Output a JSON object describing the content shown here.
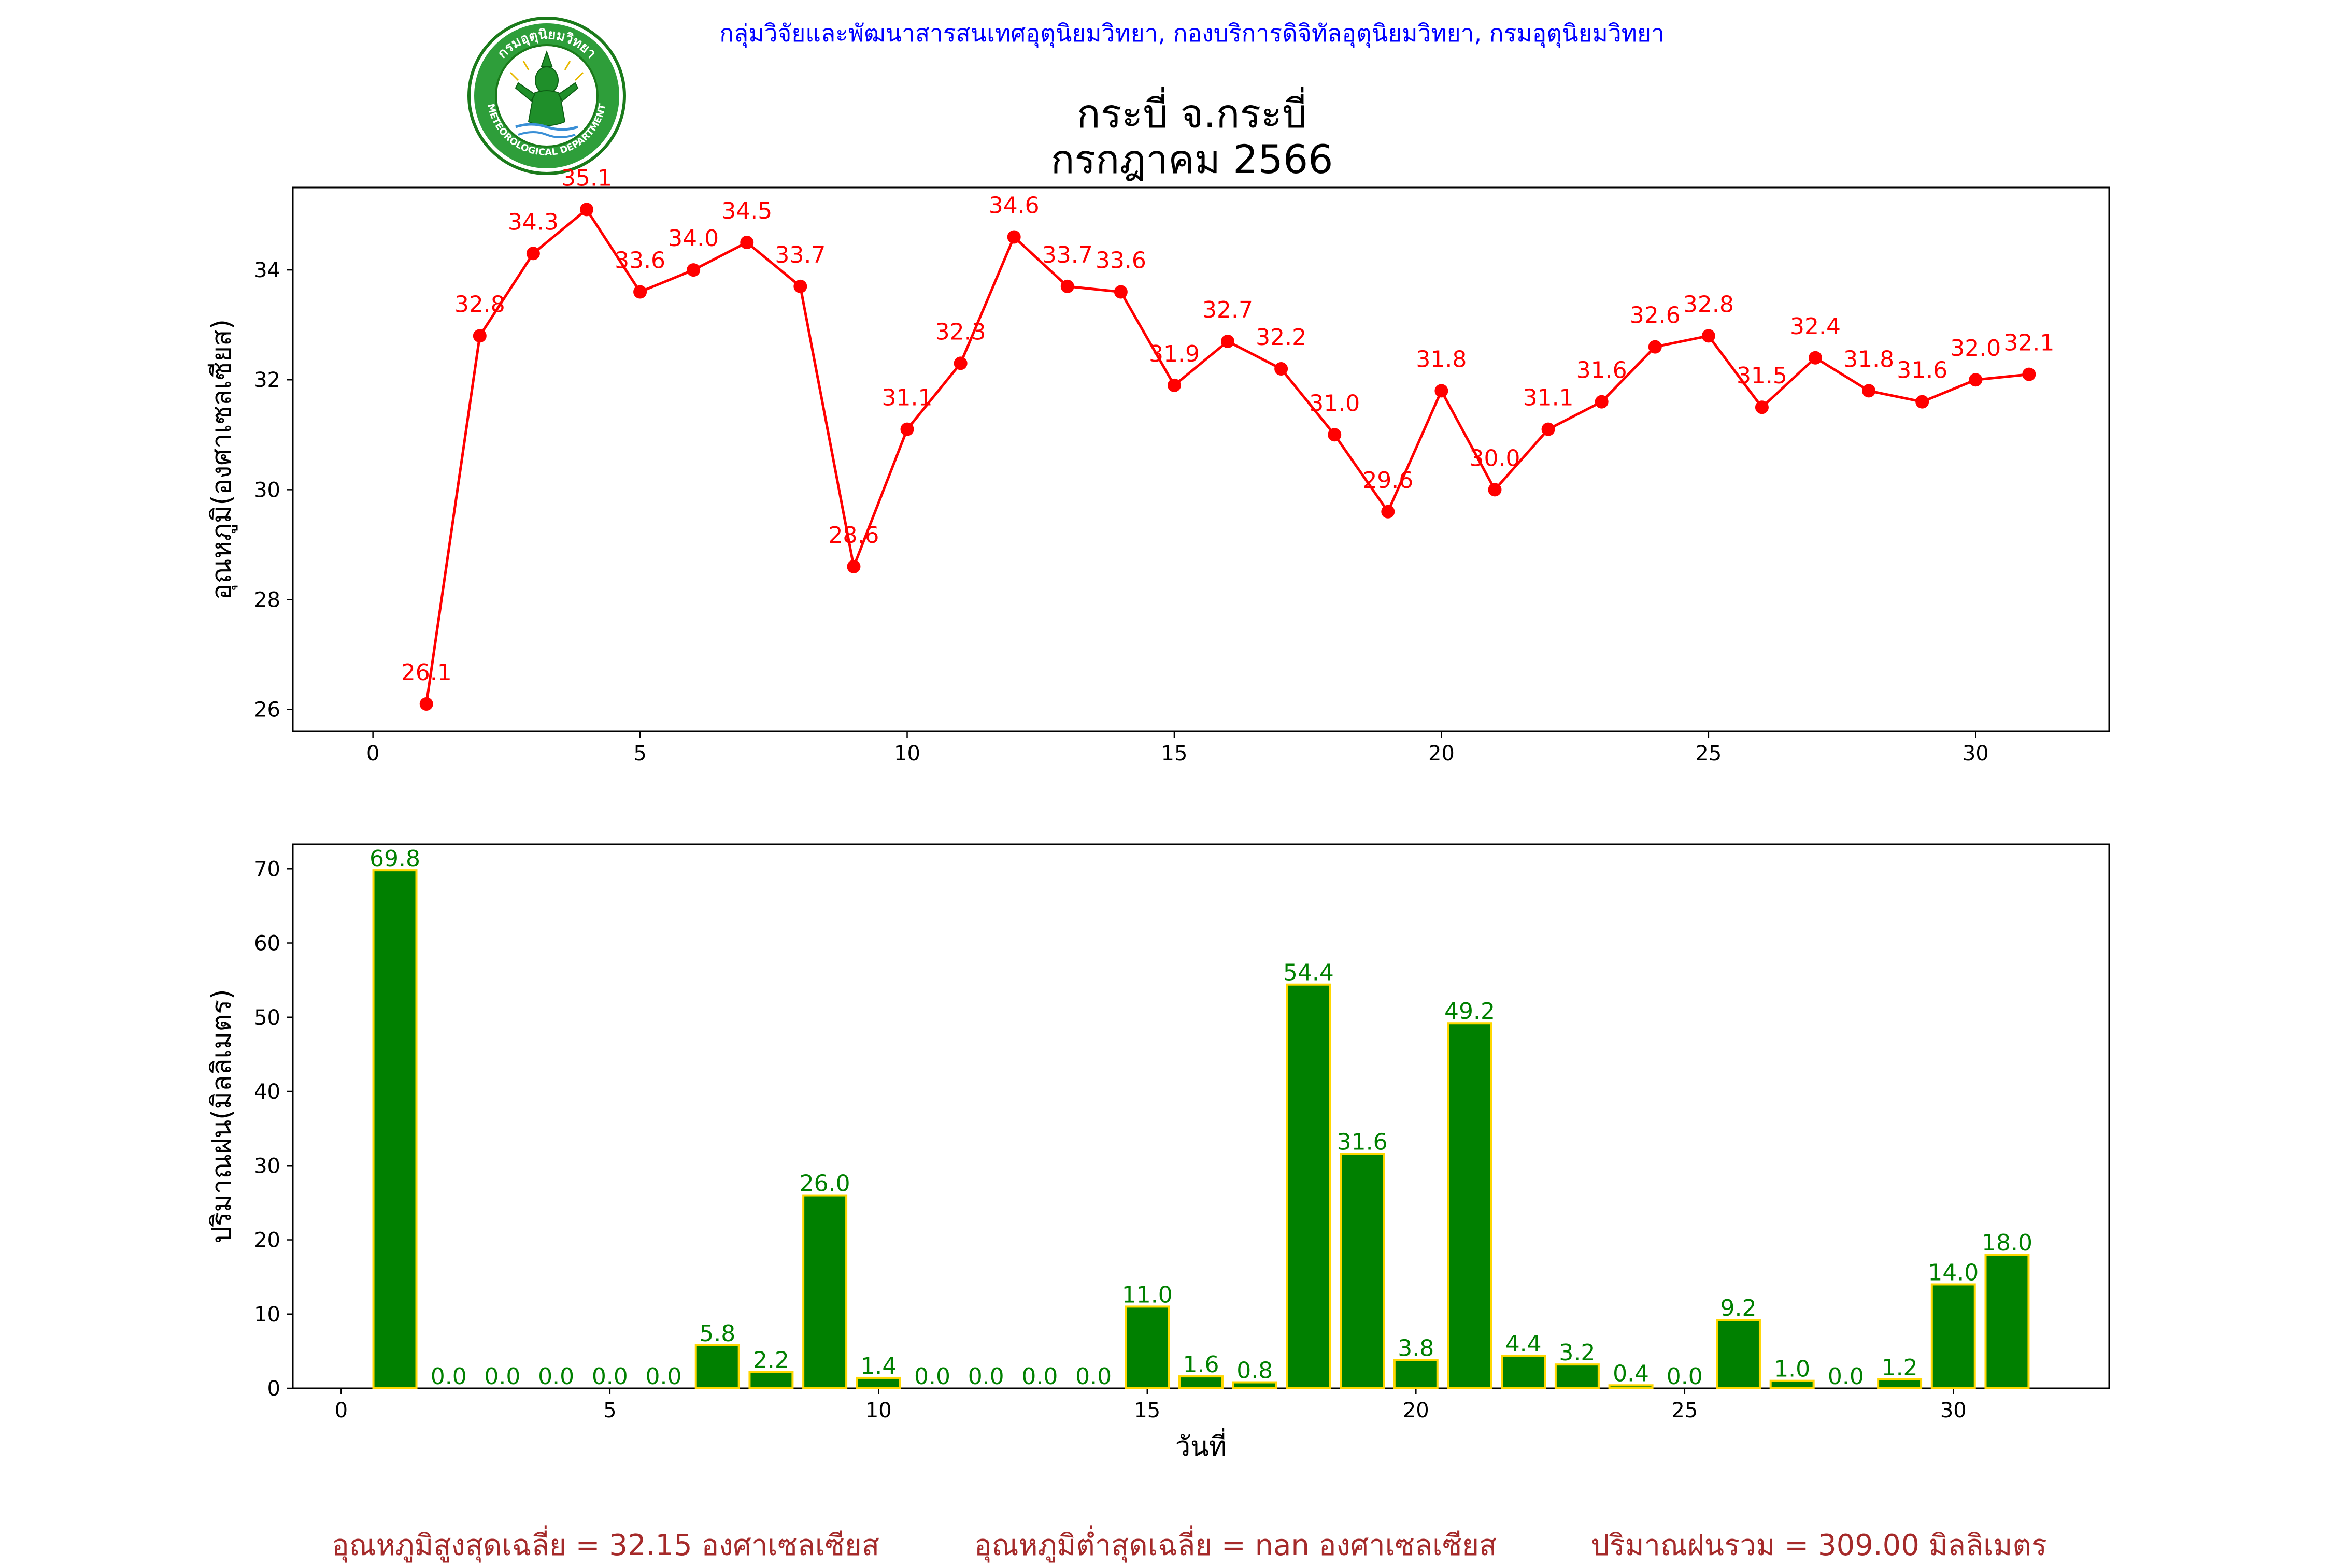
{
  "header": {
    "org_text": "กลุ่มวิจัยและพัฒนาสารสนเทศอุตุนิยมวิทยา, กองบริการดิจิทัลอุตุนิยมวิทยา, กรมอุตุนิยมวิทยา",
    "station": "กระบี่ จ.กระบี่",
    "period": "กรกฎาคม 2566"
  },
  "logo": {
    "icon": "meteorological-department-seal-icon",
    "text_top": "กรมอุตุนิยมวิทยา",
    "text_bottom": "METEOROLOGICAL DEPARTMENT"
  },
  "footer": {
    "avg_max_temp": "อุณหภูมิสูงสุดเฉลี่ย = 32.15 องศาเซลเซียส",
    "avg_min_temp": "อุณหภูมิต่ำสุดเฉลี่ย = nan องศาเซลเซียส",
    "total_rain": "ปริมาณฝนรวม = 309.00 มิลลิเมตร"
  },
  "chart_data": [
    {
      "type": "line",
      "ylabel": "อุณหภูมิ(องศาเซลเซียส)",
      "xlabel": "",
      "color": "#ff0000",
      "x": [
        1,
        2,
        3,
        4,
        5,
        6,
        7,
        8,
        9,
        10,
        11,
        12,
        13,
        14,
        15,
        16,
        17,
        18,
        19,
        20,
        21,
        22,
        23,
        24,
        25,
        26,
        27,
        28,
        29,
        30,
        31
      ],
      "values": [
        26.1,
        32.8,
        34.3,
        35.1,
        33.6,
        34.0,
        34.5,
        33.7,
        28.6,
        31.1,
        32.3,
        34.6,
        33.7,
        33.6,
        31.9,
        32.7,
        32.2,
        31.0,
        29.6,
        31.8,
        30.0,
        31.1,
        31.6,
        32.6,
        32.8,
        31.5,
        32.4,
        31.8,
        31.6,
        32.0,
        32.1
      ],
      "labels": [
        "26.1",
        "32.8",
        "34.3",
        "35.1",
        "33.6",
        "34.0",
        "34.5",
        "33.7",
        "28.6",
        "31.1",
        "32.3",
        "34.6",
        "33.7",
        "33.6",
        "31.9",
        "32.7",
        "32.2",
        "31.0",
        "29.6",
        "31.8",
        "30.0",
        "31.1",
        "31.6",
        "32.6",
        "32.8",
        "31.5",
        "32.4",
        "31.8",
        "31.6",
        "32.0",
        "32.1"
      ],
      "xlim": [
        -1.5,
        32.5
      ],
      "ylim": [
        25.6,
        35.5
      ],
      "xticks": [
        0,
        5,
        10,
        15,
        20,
        25,
        30
      ],
      "yticks": [
        26,
        28,
        30,
        32,
        34
      ],
      "grid": false
    },
    {
      "type": "bar",
      "ylabel": "ปริมาณฝน(มิลลิเมตร)",
      "xlabel": "วันที่",
      "color": "#008000",
      "edge_color": "#ffd700",
      "x": [
        1,
        2,
        3,
        4,
        5,
        6,
        7,
        8,
        9,
        10,
        11,
        12,
        13,
        14,
        15,
        16,
        17,
        18,
        19,
        20,
        21,
        22,
        23,
        24,
        25,
        26,
        27,
        28,
        29,
        30,
        31
      ],
      "values": [
        69.8,
        0.0,
        0.0,
        0.0,
        0.0,
        0.0,
        5.8,
        2.2,
        26.0,
        1.4,
        0.0,
        0.0,
        0.0,
        0.0,
        11.0,
        1.6,
        0.8,
        54.4,
        31.6,
        3.8,
        49.2,
        4.4,
        3.2,
        0.4,
        0.0,
        9.2,
        1.0,
        0.0,
        1.2,
        14.0,
        18.0
      ],
      "labels": [
        "69.8",
        "0.0",
        "0.0",
        "0.0",
        "0.0",
        "0.0",
        "5.8",
        "2.2",
        "26.0",
        "1.4",
        "0.0",
        "0.0",
        "0.0",
        "0.0",
        "11.0",
        "1.6",
        "0.8",
        "54.4",
        "31.6",
        "3.8",
        "49.2",
        "4.4",
        "3.2",
        "0.4",
        "0.0",
        "9.2",
        "1.0",
        "0.0",
        "1.2",
        "14.0",
        "18.0"
      ],
      "xlim": [
        -0.9,
        32.9
      ],
      "ylim": [
        0,
        73.3
      ],
      "xticks": [
        0,
        5,
        10,
        15,
        20,
        25,
        30
      ],
      "yticks": [
        0,
        10,
        20,
        30,
        40,
        50,
        60,
        70
      ],
      "grid": false
    }
  ]
}
